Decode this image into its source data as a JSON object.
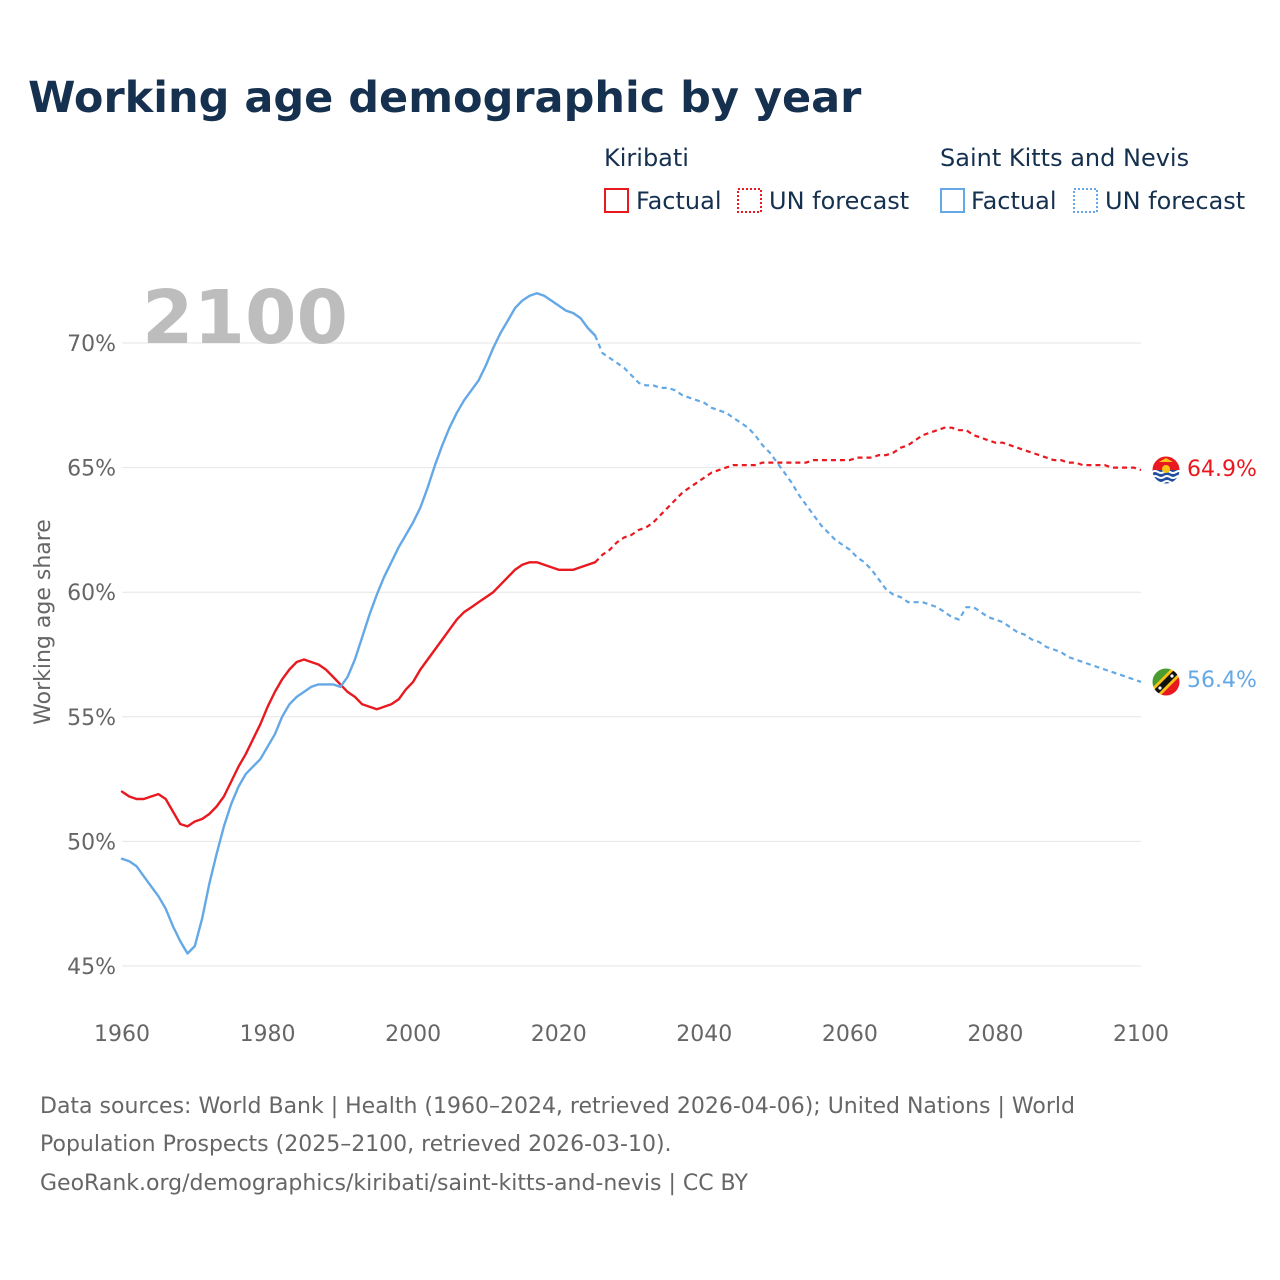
{
  "title": "Working age demographic by year",
  "year_display": "2100",
  "legend": {
    "groups": [
      {
        "country": "Kiribati",
        "color": "#e8191f",
        "factual": "Factual",
        "forecast": "UN forecast"
      },
      {
        "country": "Saint Kitts and Nevis",
        "color": "#64a8e6",
        "factual": "Factual",
        "forecast": "UN forecast"
      }
    ]
  },
  "source_lines": [
    "Data sources: World Bank | Health (1960–2024, retrieved 2026-04-06); United Nations | World",
    "Population Prospects (2025–2100, retrieved 2026-03-10).",
    "GeoRank.org/demographics/kiribati/saint-kitts-and-nevis | CC BY"
  ],
  "chart_data": {
    "type": "line",
    "title": "Working age demographic by year",
    "xlabel": "",
    "ylabel": "Working age share",
    "xlim": [
      1960,
      2100
    ],
    "ylim": [
      45,
      72
    ],
    "x_ticks": [
      1960,
      1980,
      2000,
      2020,
      2040,
      2060,
      2080,
      2100
    ],
    "x_tick_labels": [
      "1960",
      "1980",
      "2000",
      "2020",
      "2040",
      "2060",
      "2080",
      "2100"
    ],
    "y_ticks": [
      45,
      50,
      55,
      60,
      65,
      70
    ],
    "y_tick_labels": [
      "45%",
      "50%",
      "55%",
      "60%",
      "65%",
      "70%"
    ],
    "forecast_start": 2025,
    "series": [
      {
        "name": "Kiribati",
        "color": "#e8191f",
        "end_label": "64.9%",
        "points": [
          [
            1960,
            52.0
          ],
          [
            1961,
            51.8
          ],
          [
            1962,
            51.7
          ],
          [
            1963,
            51.7
          ],
          [
            1964,
            51.8
          ],
          [
            1965,
            51.9
          ],
          [
            1966,
            51.7
          ],
          [
            1967,
            51.2
          ],
          [
            1968,
            50.7
          ],
          [
            1969,
            50.6
          ],
          [
            1970,
            50.8
          ],
          [
            1971,
            50.9
          ],
          [
            1972,
            51.1
          ],
          [
            1973,
            51.4
          ],
          [
            1974,
            51.8
          ],
          [
            1975,
            52.4
          ],
          [
            1976,
            53.0
          ],
          [
            1977,
            53.5
          ],
          [
            1978,
            54.1
          ],
          [
            1979,
            54.7
          ],
          [
            1980,
            55.4
          ],
          [
            1981,
            56.0
          ],
          [
            1982,
            56.5
          ],
          [
            1983,
            56.9
          ],
          [
            1984,
            57.2
          ],
          [
            1985,
            57.3
          ],
          [
            1986,
            57.2
          ],
          [
            1987,
            57.1
          ],
          [
            1988,
            56.9
          ],
          [
            1989,
            56.6
          ],
          [
            1990,
            56.3
          ],
          [
            1991,
            56.0
          ],
          [
            1992,
            55.8
          ],
          [
            1993,
            55.5
          ],
          [
            1994,
            55.4
          ],
          [
            1995,
            55.3
          ],
          [
            1996,
            55.4
          ],
          [
            1997,
            55.5
          ],
          [
            1998,
            55.7
          ],
          [
            1999,
            56.1
          ],
          [
            2000,
            56.4
          ],
          [
            2001,
            56.9
          ],
          [
            2002,
            57.3
          ],
          [
            2003,
            57.7
          ],
          [
            2004,
            58.1
          ],
          [
            2005,
            58.5
          ],
          [
            2006,
            58.9
          ],
          [
            2007,
            59.2
          ],
          [
            2008,
            59.4
          ],
          [
            2009,
            59.6
          ],
          [
            2010,
            59.8
          ],
          [
            2011,
            60.0
          ],
          [
            2012,
            60.3
          ],
          [
            2013,
            60.6
          ],
          [
            2014,
            60.9
          ],
          [
            2015,
            61.1
          ],
          [
            2016,
            61.2
          ],
          [
            2017,
            61.2
          ],
          [
            2018,
            61.1
          ],
          [
            2019,
            61.0
          ],
          [
            2020,
            60.9
          ],
          [
            2021,
            60.9
          ],
          [
            2022,
            60.9
          ],
          [
            2023,
            61.0
          ],
          [
            2024,
            61.1
          ],
          [
            2025,
            61.2
          ],
          [
            2026,
            61.5
          ],
          [
            2027,
            61.7
          ],
          [
            2028,
            62.0
          ],
          [
            2029,
            62.2
          ],
          [
            2030,
            62.3
          ],
          [
            2031,
            62.5
          ],
          [
            2032,
            62.6
          ],
          [
            2033,
            62.8
          ],
          [
            2034,
            63.1
          ],
          [
            2035,
            63.4
          ],
          [
            2036,
            63.7
          ],
          [
            2037,
            64.0
          ],
          [
            2038,
            64.2
          ],
          [
            2039,
            64.4
          ],
          [
            2040,
            64.6
          ],
          [
            2041,
            64.8
          ],
          [
            2042,
            64.9
          ],
          [
            2043,
            65.0
          ],
          [
            2044,
            65.1
          ],
          [
            2045,
            65.1
          ],
          [
            2046,
            65.1
          ],
          [
            2047,
            65.1
          ],
          [
            2048,
            65.2
          ],
          [
            2049,
            65.2
          ],
          [
            2050,
            65.2
          ],
          [
            2051,
            65.2
          ],
          [
            2052,
            65.2
          ],
          [
            2053,
            65.2
          ],
          [
            2054,
            65.2
          ],
          [
            2055,
            65.3
          ],
          [
            2056,
            65.3
          ],
          [
            2057,
            65.3
          ],
          [
            2058,
            65.3
          ],
          [
            2059,
            65.3
          ],
          [
            2060,
            65.3
          ],
          [
            2061,
            65.4
          ],
          [
            2062,
            65.4
          ],
          [
            2063,
            65.4
          ],
          [
            2064,
            65.5
          ],
          [
            2065,
            65.5
          ],
          [
            2066,
            65.6
          ],
          [
            2067,
            65.8
          ],
          [
            2068,
            65.9
          ],
          [
            2069,
            66.1
          ],
          [
            2070,
            66.3
          ],
          [
            2071,
            66.4
          ],
          [
            2072,
            66.5
          ],
          [
            2073,
            66.6
          ],
          [
            2074,
            66.6
          ],
          [
            2075,
            66.5
          ],
          [
            2076,
            66.5
          ],
          [
            2077,
            66.3
          ],
          [
            2078,
            66.2
          ],
          [
            2079,
            66.1
          ],
          [
            2080,
            66.0
          ],
          [
            2081,
            66.0
          ],
          [
            2082,
            65.9
          ],
          [
            2083,
            65.8
          ],
          [
            2084,
            65.7
          ],
          [
            2085,
            65.6
          ],
          [
            2086,
            65.5
          ],
          [
            2087,
            65.4
          ],
          [
            2088,
            65.3
          ],
          [
            2089,
            65.3
          ],
          [
            2090,
            65.2
          ],
          [
            2091,
            65.2
          ],
          [
            2092,
            65.1
          ],
          [
            2093,
            65.1
          ],
          [
            2094,
            65.1
          ],
          [
            2095,
            65.1
          ],
          [
            2096,
            65.0
          ],
          [
            2097,
            65.0
          ],
          [
            2098,
            65.0
          ],
          [
            2099,
            65.0
          ],
          [
            2100,
            64.9
          ]
        ]
      },
      {
        "name": "Saint Kitts and Nevis",
        "color": "#64a8e6",
        "end_label": "56.4%",
        "points": [
          [
            1960,
            49.3
          ],
          [
            1961,
            49.2
          ],
          [
            1962,
            49.0
          ],
          [
            1963,
            48.6
          ],
          [
            1964,
            48.2
          ],
          [
            1965,
            47.8
          ],
          [
            1966,
            47.3
          ],
          [
            1967,
            46.6
          ],
          [
            1968,
            46.0
          ],
          [
            1969,
            45.5
          ],
          [
            1970,
            45.8
          ],
          [
            1971,
            46.9
          ],
          [
            1972,
            48.3
          ],
          [
            1973,
            49.5
          ],
          [
            1974,
            50.6
          ],
          [
            1975,
            51.5
          ],
          [
            1976,
            52.2
          ],
          [
            1977,
            52.7
          ],
          [
            1978,
            53.0
          ],
          [
            1979,
            53.3
          ],
          [
            1980,
            53.8
          ],
          [
            1981,
            54.3
          ],
          [
            1982,
            55.0
          ],
          [
            1983,
            55.5
          ],
          [
            1984,
            55.8
          ],
          [
            1985,
            56.0
          ],
          [
            1986,
            56.2
          ],
          [
            1987,
            56.3
          ],
          [
            1988,
            56.3
          ],
          [
            1989,
            56.3
          ],
          [
            1990,
            56.2
          ],
          [
            1991,
            56.6
          ],
          [
            1992,
            57.3
          ],
          [
            1993,
            58.2
          ],
          [
            1994,
            59.1
          ],
          [
            1995,
            59.9
          ],
          [
            1996,
            60.6
          ],
          [
            1997,
            61.2
          ],
          [
            1998,
            61.8
          ],
          [
            1999,
            62.3
          ],
          [
            2000,
            62.8
          ],
          [
            2001,
            63.4
          ],
          [
            2002,
            64.2
          ],
          [
            2003,
            65.1
          ],
          [
            2004,
            65.9
          ],
          [
            2005,
            66.6
          ],
          [
            2006,
            67.2
          ],
          [
            2007,
            67.7
          ],
          [
            2008,
            68.1
          ],
          [
            2009,
            68.5
          ],
          [
            2010,
            69.1
          ],
          [
            2011,
            69.8
          ],
          [
            2012,
            70.4
          ],
          [
            2013,
            70.9
          ],
          [
            2014,
            71.4
          ],
          [
            2015,
            71.7
          ],
          [
            2016,
            71.9
          ],
          [
            2017,
            72.0
          ],
          [
            2018,
            71.9
          ],
          [
            2019,
            71.7
          ],
          [
            2020,
            71.5
          ],
          [
            2021,
            71.3
          ],
          [
            2022,
            71.2
          ],
          [
            2023,
            71.0
          ],
          [
            2024,
            70.6
          ],
          [
            2025,
            70.3
          ],
          [
            2026,
            69.6
          ],
          [
            2027,
            69.4
          ],
          [
            2028,
            69.2
          ],
          [
            2029,
            69.0
          ],
          [
            2030,
            68.7
          ],
          [
            2031,
            68.4
          ],
          [
            2032,
            68.3
          ],
          [
            2033,
            68.3
          ],
          [
            2034,
            68.2
          ],
          [
            2035,
            68.2
          ],
          [
            2036,
            68.1
          ],
          [
            2037,
            67.9
          ],
          [
            2038,
            67.8
          ],
          [
            2039,
            67.7
          ],
          [
            2040,
            67.6
          ],
          [
            2041,
            67.4
          ],
          [
            2042,
            67.3
          ],
          [
            2043,
            67.2
          ],
          [
            2044,
            67.0
          ],
          [
            2045,
            66.8
          ],
          [
            2046,
            66.6
          ],
          [
            2047,
            66.3
          ],
          [
            2048,
            65.9
          ],
          [
            2049,
            65.6
          ],
          [
            2050,
            65.2
          ],
          [
            2051,
            64.8
          ],
          [
            2052,
            64.4
          ],
          [
            2053,
            63.9
          ],
          [
            2054,
            63.5
          ],
          [
            2055,
            63.1
          ],
          [
            2056,
            62.7
          ],
          [
            2057,
            62.4
          ],
          [
            2058,
            62.1
          ],
          [
            2059,
            61.9
          ],
          [
            2060,
            61.7
          ],
          [
            2061,
            61.4
          ],
          [
            2062,
            61.2
          ],
          [
            2063,
            60.9
          ],
          [
            2064,
            60.5
          ],
          [
            2065,
            60.1
          ],
          [
            2066,
            59.9
          ],
          [
            2067,
            59.8
          ],
          [
            2068,
            59.6
          ],
          [
            2069,
            59.6
          ],
          [
            2070,
            59.6
          ],
          [
            2071,
            59.5
          ],
          [
            2072,
            59.4
          ],
          [
            2073,
            59.2
          ],
          [
            2074,
            59.0
          ],
          [
            2075,
            58.9
          ],
          [
            2076,
            59.4
          ],
          [
            2077,
            59.4
          ],
          [
            2078,
            59.2
          ],
          [
            2079,
            59.0
          ],
          [
            2080,
            58.9
          ],
          [
            2081,
            58.8
          ],
          [
            2082,
            58.6
          ],
          [
            2083,
            58.4
          ],
          [
            2084,
            58.3
          ],
          [
            2085,
            58.1
          ],
          [
            2086,
            58.0
          ],
          [
            2087,
            57.8
          ],
          [
            2088,
            57.7
          ],
          [
            2089,
            57.6
          ],
          [
            2090,
            57.4
          ],
          [
            2091,
            57.3
          ],
          [
            2092,
            57.2
          ],
          [
            2093,
            57.1
          ],
          [
            2094,
            57.0
          ],
          [
            2095,
            56.9
          ],
          [
            2096,
            56.8
          ],
          [
            2097,
            56.7
          ],
          [
            2098,
            56.6
          ],
          [
            2099,
            56.5
          ],
          [
            2100,
            56.4
          ]
        ]
      }
    ]
  }
}
